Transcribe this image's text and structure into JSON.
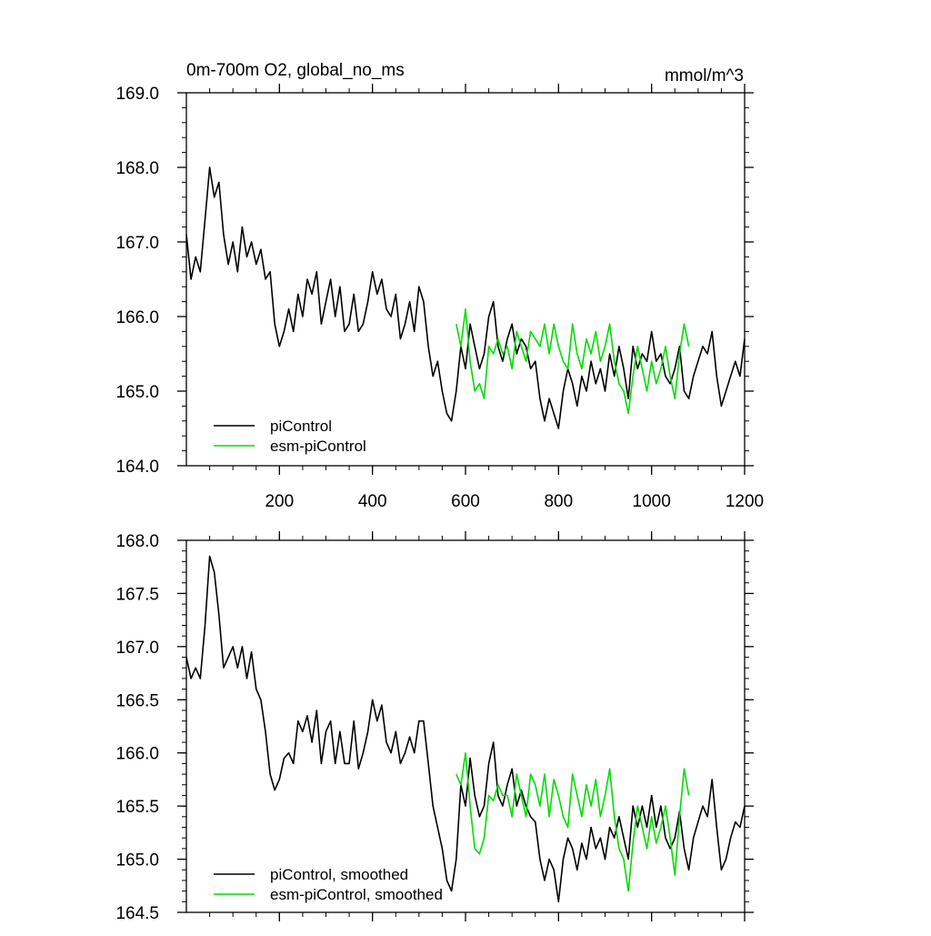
{
  "chart_data": [
    {
      "type": "line",
      "title": "0m-700m O2, global_no_ms",
      "units": "mmol/m^3",
      "xlim": [
        0,
        1200
      ],
      "ylim": [
        164.0,
        169.0
      ],
      "x_ticks": [
        200,
        400,
        600,
        800,
        1000,
        1200
      ],
      "x_tick_labels": [
        "200",
        "400",
        "600",
        "800",
        "1000",
        "1200"
      ],
      "y_ticks": [
        164.0,
        165.0,
        166.0,
        167.0,
        168.0,
        169.0
      ],
      "y_tick_labels": [
        "164.0",
        "165.0",
        "166.0",
        "167.0",
        "168.0",
        "169.0"
      ],
      "legend_position": "bottom-left",
      "series": [
        {
          "name": "piControl",
          "color": "#000000",
          "x": [
            0,
            10,
            20,
            30,
            40,
            50,
            60,
            70,
            80,
            90,
            100,
            110,
            120,
            130,
            140,
            150,
            160,
            170,
            180,
            190,
            200,
            210,
            220,
            230,
            240,
            250,
            260,
            270,
            280,
            290,
            300,
            310,
            320,
            330,
            340,
            350,
            360,
            370,
            380,
            390,
            400,
            410,
            420,
            430,
            440,
            450,
            460,
            470,
            480,
            490,
            500,
            510,
            520,
            530,
            540,
            550,
            560,
            570,
            580,
            590,
            600,
            610,
            620,
            630,
            640,
            650,
            660,
            670,
            680,
            690,
            700,
            710,
            720,
            730,
            740,
            750,
            760,
            770,
            780,
            790,
            800,
            810,
            820,
            830,
            840,
            850,
            860,
            870,
            880,
            890,
            900,
            910,
            920,
            930,
            940,
            950,
            960,
            970,
            980,
            990,
            1000,
            1010,
            1020,
            1030,
            1040,
            1050,
            1060,
            1070,
            1080,
            1090,
            1100,
            1110,
            1120,
            1130,
            1140,
            1150,
            1160,
            1170,
            1180,
            1190,
            1200
          ],
          "y": [
            167.1,
            166.5,
            166.8,
            166.6,
            167.3,
            168.0,
            167.6,
            167.8,
            167.1,
            166.7,
            167.0,
            166.6,
            167.2,
            166.8,
            167.0,
            166.7,
            166.9,
            166.5,
            166.6,
            165.9,
            165.6,
            165.8,
            166.1,
            165.8,
            166.3,
            166.0,
            166.5,
            166.3,
            166.6,
            165.9,
            166.2,
            166.5,
            166.0,
            166.4,
            165.8,
            165.9,
            166.3,
            165.8,
            165.9,
            166.2,
            166.6,
            166.3,
            166.5,
            166.1,
            166.0,
            166.3,
            165.7,
            165.9,
            166.2,
            165.8,
            166.4,
            166.2,
            165.6,
            165.2,
            165.4,
            165.0,
            164.7,
            164.6,
            165.0,
            165.6,
            165.3,
            165.9,
            165.6,
            165.3,
            165.5,
            166.0,
            166.2,
            165.6,
            165.4,
            165.7,
            165.9,
            165.5,
            165.7,
            165.6,
            165.3,
            165.4,
            164.9,
            164.6,
            164.9,
            164.7,
            164.5,
            165.0,
            165.3,
            165.1,
            164.8,
            165.2,
            165.0,
            165.4,
            165.1,
            165.3,
            165.0,
            165.5,
            165.2,
            165.6,
            165.3,
            164.9,
            165.6,
            165.3,
            165.5,
            165.4,
            165.8,
            165.4,
            165.5,
            165.2,
            165.1,
            165.3,
            165.6,
            165.0,
            164.9,
            165.2,
            165.4,
            165.6,
            165.5,
            165.8,
            165.2,
            164.8,
            165.0,
            165.2,
            165.4,
            165.2,
            165.7
          ]
        },
        {
          "name": "esm-piControl",
          "color": "#00dd00",
          "x": [
            580,
            590,
            600,
            610,
            620,
            630,
            640,
            650,
            660,
            670,
            680,
            690,
            700,
            710,
            720,
            730,
            740,
            750,
            760,
            770,
            780,
            790,
            800,
            810,
            820,
            830,
            840,
            850,
            860,
            870,
            880,
            890,
            900,
            910,
            920,
            930,
            940,
            950,
            960,
            970,
            980,
            990,
            1000,
            1010,
            1020,
            1030,
            1040,
            1050,
            1060,
            1070,
            1080
          ],
          "y": [
            165.9,
            165.6,
            166.1,
            165.4,
            165.0,
            165.1,
            164.9,
            165.6,
            165.5,
            165.7,
            165.5,
            165.6,
            165.3,
            165.8,
            165.6,
            165.4,
            165.8,
            165.7,
            165.6,
            165.9,
            165.5,
            165.9,
            165.6,
            165.4,
            165.3,
            165.9,
            165.5,
            165.3,
            165.7,
            165.5,
            165.8,
            165.4,
            165.6,
            165.9,
            165.4,
            165.1,
            165.0,
            164.7,
            165.2,
            165.6,
            165.3,
            165.0,
            165.4,
            165.1,
            165.3,
            165.6,
            165.2,
            164.9,
            165.5,
            165.9,
            165.6
          ]
        }
      ]
    },
    {
      "type": "line",
      "title": "",
      "xlim": [
        0,
        1200
      ],
      "ylim": [
        164.5,
        168.0
      ],
      "x_ticks": [
        200,
        400,
        600,
        800,
        1000,
        1200
      ],
      "y_ticks": [
        164.5,
        165.0,
        165.5,
        166.0,
        166.5,
        167.0,
        167.5,
        168.0
      ],
      "y_tick_labels": [
        "164.5",
        "165.0",
        "165.5",
        "166.0",
        "166.5",
        "167.0",
        "167.5",
        "168.0"
      ],
      "legend_position": "bottom-left",
      "series": [
        {
          "name": "piControl, smoothed",
          "color": "#000000",
          "x": [
            0,
            10,
            20,
            30,
            40,
            50,
            60,
            70,
            80,
            90,
            100,
            110,
            120,
            130,
            140,
            150,
            160,
            170,
            180,
            190,
            200,
            210,
            220,
            230,
            240,
            250,
            260,
            270,
            280,
            290,
            300,
            310,
            320,
            330,
            340,
            350,
            360,
            370,
            380,
            390,
            400,
            410,
            420,
            430,
            440,
            450,
            460,
            470,
            480,
            490,
            500,
            510,
            520,
            530,
            540,
            550,
            560,
            570,
            580,
            590,
            600,
            610,
            620,
            630,
            640,
            650,
            660,
            670,
            680,
            690,
            700,
            710,
            720,
            730,
            740,
            750,
            760,
            770,
            780,
            790,
            800,
            810,
            820,
            830,
            840,
            850,
            860,
            870,
            880,
            890,
            900,
            910,
            920,
            930,
            940,
            950,
            960,
            970,
            980,
            990,
            1000,
            1010,
            1020,
            1030,
            1040,
            1050,
            1060,
            1070,
            1080,
            1090,
            1100,
            1110,
            1120,
            1130,
            1140,
            1150,
            1160,
            1170,
            1180,
            1190,
            1200
          ],
          "y": [
            166.9,
            166.7,
            166.8,
            166.7,
            167.2,
            167.85,
            167.7,
            167.3,
            166.8,
            166.9,
            167.0,
            166.8,
            167.0,
            166.7,
            166.95,
            166.6,
            166.5,
            166.2,
            165.8,
            165.65,
            165.75,
            165.95,
            166.0,
            165.9,
            166.3,
            166.2,
            166.35,
            166.1,
            166.4,
            165.9,
            166.2,
            166.3,
            165.9,
            166.2,
            165.9,
            165.9,
            166.3,
            165.85,
            166.0,
            166.2,
            166.5,
            166.3,
            166.45,
            166.1,
            166.0,
            166.2,
            165.9,
            166.0,
            166.15,
            166.0,
            166.3,
            166.3,
            165.9,
            165.5,
            165.3,
            165.1,
            164.8,
            164.7,
            165.0,
            165.7,
            165.5,
            165.95,
            165.6,
            165.4,
            165.5,
            165.9,
            166.1,
            165.6,
            165.5,
            165.7,
            165.85,
            165.5,
            165.65,
            165.5,
            165.4,
            165.35,
            165.0,
            164.8,
            165.0,
            164.9,
            164.6,
            165.0,
            165.2,
            165.1,
            164.9,
            165.15,
            165.0,
            165.3,
            165.1,
            165.2,
            165.0,
            165.3,
            165.2,
            165.4,
            165.2,
            165.0,
            165.5,
            165.3,
            165.5,
            165.3,
            165.6,
            165.3,
            165.5,
            165.2,
            165.1,
            165.2,
            165.45,
            165.1,
            164.9,
            165.2,
            165.35,
            165.5,
            165.4,
            165.75,
            165.3,
            164.9,
            165.0,
            165.2,
            165.35,
            165.3,
            165.5
          ]
        },
        {
          "name": "esm-piControl, smoothed",
          "color": "#00dd00",
          "x": [
            580,
            590,
            600,
            610,
            620,
            630,
            640,
            650,
            660,
            670,
            680,
            690,
            700,
            710,
            720,
            730,
            740,
            750,
            760,
            770,
            780,
            790,
            800,
            810,
            820,
            830,
            840,
            850,
            860,
            870,
            880,
            890,
            900,
            910,
            920,
            930,
            940,
            950,
            960,
            970,
            980,
            990,
            1000,
            1010,
            1020,
            1030,
            1040,
            1050,
            1060,
            1070,
            1080
          ],
          "y": [
            165.8,
            165.7,
            166.0,
            165.5,
            165.1,
            165.05,
            165.2,
            165.6,
            165.55,
            165.7,
            165.6,
            165.6,
            165.4,
            165.8,
            165.6,
            165.4,
            165.8,
            165.7,
            165.5,
            165.8,
            165.4,
            165.75,
            165.6,
            165.4,
            165.3,
            165.8,
            165.6,
            165.4,
            165.7,
            165.5,
            165.75,
            165.4,
            165.6,
            165.85,
            165.4,
            165.1,
            165.0,
            164.7,
            165.15,
            165.5,
            165.3,
            165.1,
            165.4,
            165.15,
            165.3,
            165.5,
            165.2,
            164.85,
            165.4,
            165.85,
            165.6
          ]
        }
      ]
    }
  ]
}
